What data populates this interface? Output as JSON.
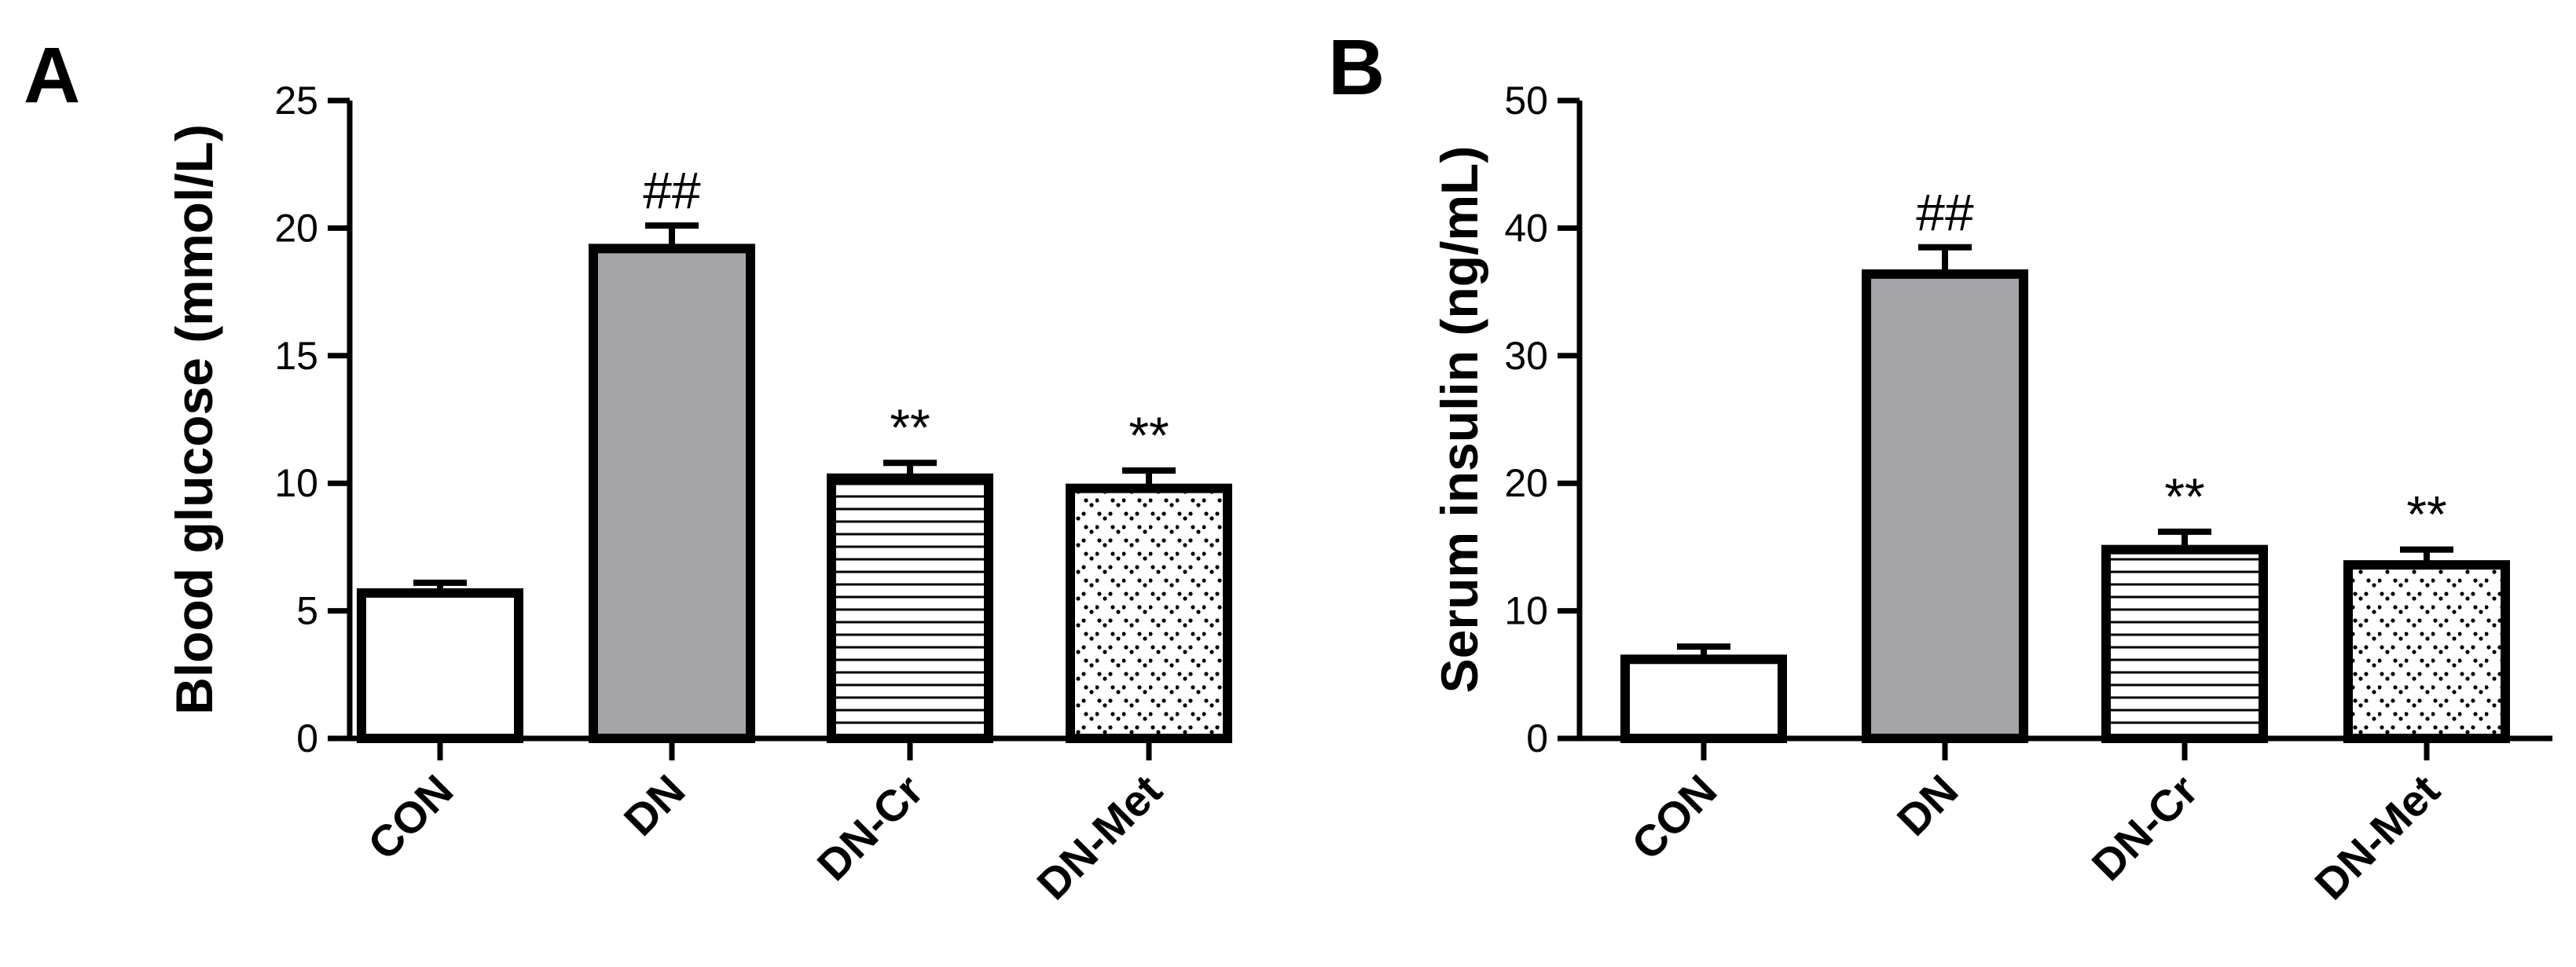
{
  "chart_data": [
    {
      "type": "bar",
      "panel": "A",
      "ylabel": "Blood glucose (mmol/L)",
      "ylim": [
        0,
        25
      ],
      "yticks": [
        0,
        5,
        10,
        15,
        20,
        25
      ],
      "categories": [
        "CON",
        "DN",
        "DN-Cr",
        "DN-Met"
      ],
      "values": [
        5.7,
        19.2,
        10.2,
        9.8
      ],
      "errors": [
        0.4,
        0.9,
        0.6,
        0.7
      ],
      "fills": [
        "white",
        "gray",
        "hlines",
        "dots"
      ],
      "annotations": [
        "",
        "##",
        "**",
        "**"
      ]
    },
    {
      "type": "bar",
      "panel": "B",
      "ylabel": "Serum insulin (ng/mL)",
      "ylim": [
        0,
        50
      ],
      "yticks": [
        0,
        10,
        20,
        30,
        40,
        50
      ],
      "categories": [
        "CON",
        "DN",
        "DN-Cr",
        "DN-Met"
      ],
      "values": [
        6.2,
        36.4,
        14.8,
        13.6
      ],
      "errors": [
        1.0,
        2.1,
        1.4,
        1.2
      ],
      "fills": [
        "white",
        "gray",
        "hlines",
        "dots"
      ],
      "annotations": [
        "",
        "##",
        "**",
        "**"
      ]
    }
  ],
  "colors": {
    "bar_gray": "#a3a3a8",
    "ink": "#000000",
    "background": "#ffffff"
  }
}
